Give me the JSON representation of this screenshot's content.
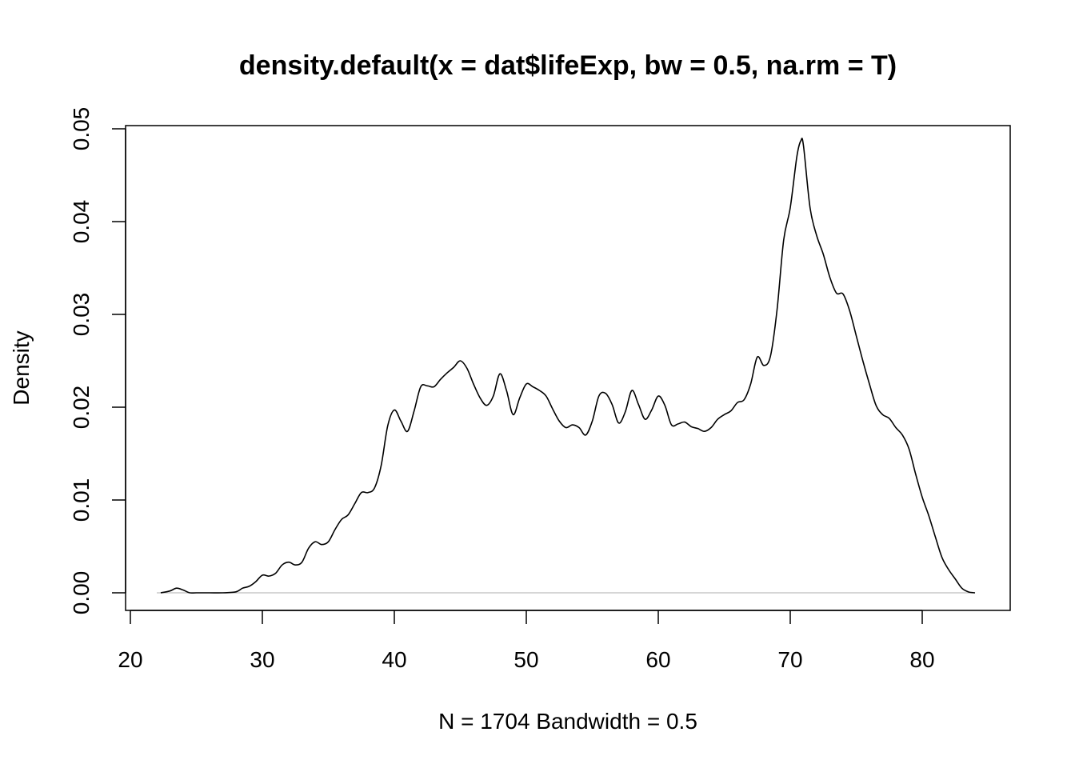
{
  "chart_data": {
    "type": "line",
    "title": "density.default(x = dat$lifeExp, bw = 0.5, na.rm = T)",
    "xlabel": "N = 1704   Bandwidth = 0.5",
    "ylabel": "Density",
    "xlim": [
      22,
      84
    ],
    "ylim": [
      0,
      0.05
    ],
    "x_ticks": [
      {
        "value": 20,
        "label": "20"
      },
      {
        "value": 30,
        "label": "30"
      },
      {
        "value": 40,
        "label": "40"
      },
      {
        "value": 50,
        "label": "50"
      },
      {
        "value": 60,
        "label": "60"
      },
      {
        "value": 70,
        "label": "70"
      },
      {
        "value": 80,
        "label": "80"
      }
    ],
    "y_ticks": [
      {
        "value": 0.0,
        "label": "0.00"
      },
      {
        "value": 0.01,
        "label": "0.01"
      },
      {
        "value": 0.02,
        "label": "0.02"
      },
      {
        "value": 0.03,
        "label": "0.03"
      },
      {
        "value": 0.04,
        "label": "0.04"
      },
      {
        "value": 0.05,
        "label": "0.05"
      }
    ],
    "baseline": 0,
    "grid": false,
    "line_color": "#000000",
    "baseline_color": "#bebebe",
    "series": [
      {
        "x": [
          22.3,
          23.0,
          23.5,
          24.0,
          24.5,
          25.0,
          26.0,
          27.0,
          28.0,
          28.5,
          29.0,
          29.5,
          30.0,
          30.5,
          31.0,
          31.5,
          32.0,
          32.5,
          33.0,
          33.5,
          34.0,
          34.5,
          35.0,
          35.5,
          36.0,
          36.5,
          37.0,
          37.5,
          38.0,
          38.5,
          39.0,
          39.5,
          40.0,
          40.5,
          41.0,
          41.5,
          42.0,
          42.5,
          43.0,
          43.5,
          44.0,
          44.5,
          45.0,
          45.5,
          46.0,
          46.5,
          47.0,
          47.5,
          48.0,
          48.5,
          49.0,
          49.5,
          50.0,
          50.5,
          51.0,
          51.5,
          52.0,
          52.5,
          53.0,
          53.5,
          54.0,
          54.5,
          55.0,
          55.5,
          56.0,
          56.5,
          57.0,
          57.5,
          58.0,
          58.5,
          59.0,
          59.5,
          60.0,
          60.5,
          61.0,
          61.5,
          62.0,
          62.5,
          63.0,
          63.5,
          64.0,
          64.5,
          65.0,
          65.5,
          66.0,
          66.5,
          67.0,
          67.5,
          68.0,
          68.5,
          69.0,
          69.5,
          70.0,
          70.5,
          70.8,
          71.0,
          71.5,
          72.0,
          72.5,
          73.0,
          73.5,
          74.0,
          74.5,
          75.0,
          75.5,
          76.0,
          76.5,
          77.0,
          77.5,
          78.0,
          78.5,
          79.0,
          79.5,
          80.0,
          80.5,
          81.0,
          81.5,
          82.0,
          82.5,
          83.0,
          83.5,
          84.0
        ],
        "y": [
          0.0,
          0.0002,
          0.0005,
          0.0003,
          0.0,
          0.0,
          0.0,
          0.0,
          0.0001,
          0.0005,
          0.0007,
          0.0012,
          0.0019,
          0.0018,
          0.0021,
          0.003,
          0.0033,
          0.003,
          0.0033,
          0.0048,
          0.0055,
          0.0052,
          0.0055,
          0.0068,
          0.0079,
          0.0084,
          0.0096,
          0.0108,
          0.0108,
          0.0113,
          0.0137,
          0.018,
          0.0197,
          0.0185,
          0.0174,
          0.0196,
          0.0222,
          0.0223,
          0.0222,
          0.023,
          0.0237,
          0.0243,
          0.025,
          0.0242,
          0.0225,
          0.021,
          0.0202,
          0.0212,
          0.0236,
          0.0218,
          0.0192,
          0.021,
          0.0225,
          0.0222,
          0.0218,
          0.0212,
          0.0198,
          0.0185,
          0.0178,
          0.0181,
          0.0178,
          0.017,
          0.0185,
          0.0212,
          0.0215,
          0.0203,
          0.0183,
          0.0195,
          0.0218,
          0.0203,
          0.0187,
          0.0197,
          0.0212,
          0.0202,
          0.0181,
          0.0182,
          0.0184,
          0.0179,
          0.0177,
          0.0174,
          0.0178,
          0.0187,
          0.0192,
          0.0196,
          0.0205,
          0.0208,
          0.0225,
          0.0254,
          0.0245,
          0.0255,
          0.0305,
          0.038,
          0.0415,
          0.047,
          0.0487,
          0.0482,
          0.0415,
          0.0385,
          0.0365,
          0.034,
          0.0323,
          0.0322,
          0.0304,
          0.0277,
          0.025,
          0.0225,
          0.0202,
          0.0192,
          0.0188,
          0.0178,
          0.017,
          0.0155,
          0.0128,
          0.0103,
          0.0083,
          0.006,
          0.0038,
          0.0025,
          0.0015,
          0.0005,
          0.0001,
          0.0
        ]
      }
    ]
  }
}
